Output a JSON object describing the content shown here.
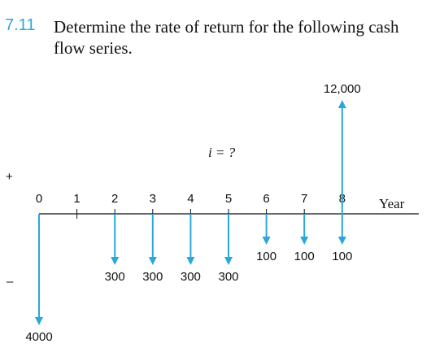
{
  "problem": {
    "number": "7.11",
    "text": "Determine the rate of return for the following cash flow series."
  },
  "diagram": {
    "plus_sign": "+",
    "minus_sign": "–",
    "rate_label": "i = ?",
    "axis_label": "Year",
    "arrow_color": "#29a8d9",
    "years": [
      "0",
      "1",
      "2",
      "3",
      "4",
      "5",
      "6",
      "7",
      "8"
    ],
    "cash_flows": [
      {
        "year": 0,
        "amount": 4000,
        "direction": "down",
        "label": "4000"
      },
      {
        "year": 2,
        "amount": 300,
        "direction": "down",
        "label": "300"
      },
      {
        "year": 3,
        "amount": 300,
        "direction": "down",
        "label": "300"
      },
      {
        "year": 4,
        "amount": 300,
        "direction": "down",
        "label": "300"
      },
      {
        "year": 5,
        "amount": 300,
        "direction": "down",
        "label": "300"
      },
      {
        "year": 6,
        "amount": 100,
        "direction": "down",
        "label": "100"
      },
      {
        "year": 7,
        "amount": 100,
        "direction": "down",
        "label": "100"
      },
      {
        "year": 8,
        "amount": 100,
        "direction": "down",
        "label": "100"
      },
      {
        "year": 8,
        "amount": 12000,
        "direction": "up",
        "label": "12,000"
      }
    ]
  }
}
